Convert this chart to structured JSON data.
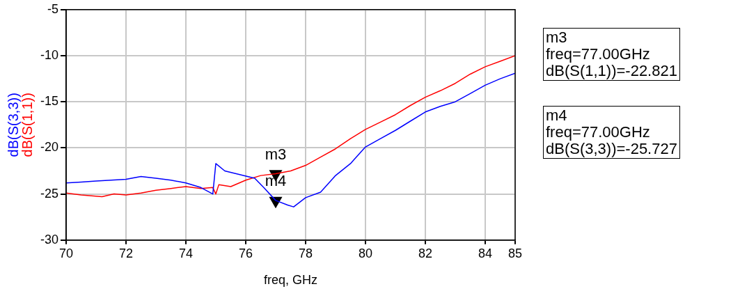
{
  "chart_data": {
    "type": "line",
    "xlabel": "freq, GHz",
    "grid": true,
    "legend": false,
    "marker": "none",
    "line_style": "solid",
    "xlim": [
      70,
      85
    ],
    "xticks": [
      70,
      72,
      74,
      76,
      78,
      80,
      82,
      84,
      85
    ],
    "ylim": [
      -30,
      -5
    ],
    "yticks": [
      -30,
      -25,
      -20,
      -15,
      -10,
      -5
    ],
    "series": [
      {
        "name": "dB(S(3,3))",
        "color": "#0000ff",
        "x": [
          70,
          70.5,
          71,
          71.5,
          72,
          72.5,
          73,
          73.5,
          74,
          74.5,
          74.9,
          75.0,
          75.3,
          75.8,
          76.3,
          76.6,
          77,
          77.4,
          77.6,
          78,
          78.5,
          79,
          79.5,
          80,
          80.5,
          81,
          81.5,
          82,
          82.5,
          83,
          83.5,
          84,
          84.5,
          85
        ],
        "values": [
          -23.8,
          -23.7,
          -23.6,
          -23.5,
          -23.4,
          -23.1,
          -23.3,
          -23.5,
          -23.8,
          -24.3,
          -25.0,
          -21.7,
          -22.5,
          -22.9,
          -23.3,
          -24.3,
          -25.7,
          -26.2,
          -26.4,
          -25.4,
          -24.8,
          -23.0,
          -21.7,
          -19.9,
          -19.0,
          -18.1,
          -17.1,
          -16.1,
          -15.5,
          -15.0,
          -14.1,
          -13.2,
          -12.5,
          -11.9
        ]
      },
      {
        "name": "dB(S(1,1))",
        "color": "#ff0000",
        "x": [
          70,
          70.5,
          71.2,
          71.6,
          72,
          72.5,
          73,
          73.5,
          74,
          74.5,
          74.9,
          75.0,
          75.1,
          75.5,
          76,
          76.5,
          77,
          77.5,
          78,
          78.5,
          79,
          79.5,
          80,
          80.5,
          81,
          81.5,
          82,
          82.5,
          83,
          83.5,
          84,
          84.5,
          85
        ],
        "values": [
          -24.9,
          -25.1,
          -25.3,
          -25.0,
          -25.1,
          -24.9,
          -24.6,
          -24.4,
          -24.2,
          -24.4,
          -24.3,
          -25.0,
          -24.0,
          -24.2,
          -23.5,
          -23.0,
          -22.8,
          -22.5,
          -21.9,
          -21.0,
          -20.1,
          -19.0,
          -18.0,
          -17.2,
          -16.4,
          -15.4,
          -14.5,
          -13.8,
          -13.0,
          -12.0,
          -11.2,
          -10.6,
          -10.0
        ]
      },
      {
        "type": "scatter",
        "color": "#000000",
        "marker": "triangle",
        "x": [
          77,
          77
        ],
        "values": [
          -22.821,
          -25.727
        ]
      }
    ],
    "annotations": [
      {
        "text": "m3",
        "x": 77,
        "y": -22.821
      },
      {
        "text": "m4",
        "x": 77,
        "y": -25.727
      },
      "m3\nfreq=77.00GHz\ndB(S(1,1))=-22.821",
      "m4\nfreq=77.00GHz\ndB(S(3,3))=-25.727"
    ]
  }
}
